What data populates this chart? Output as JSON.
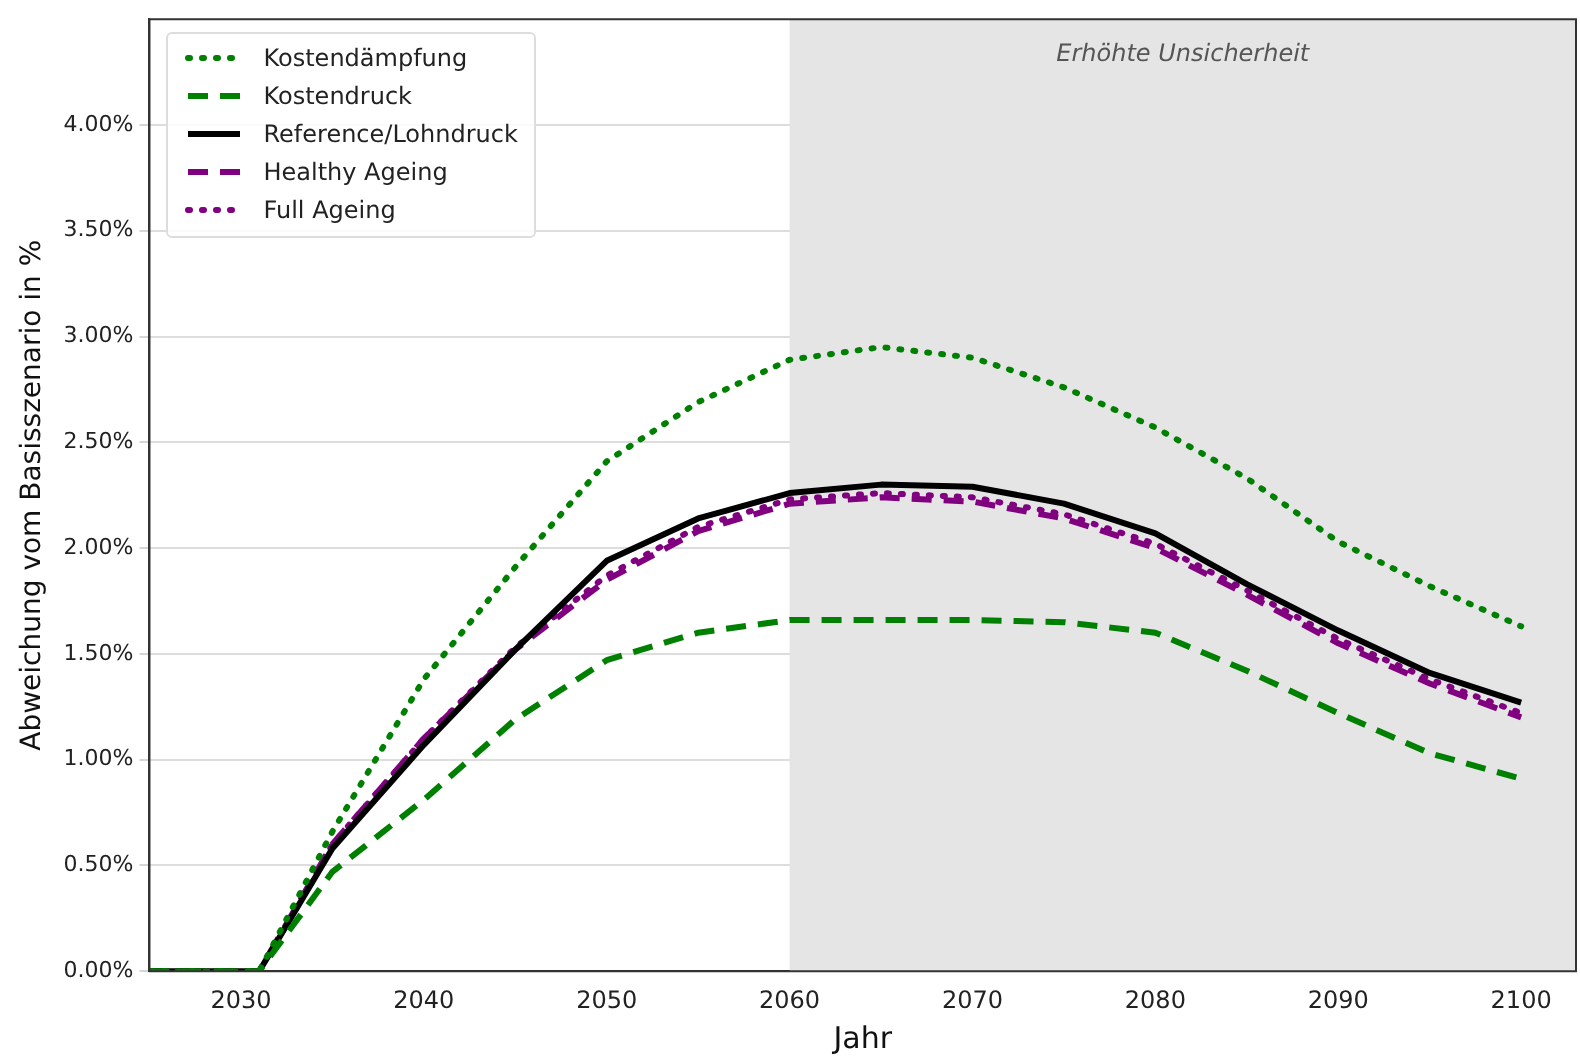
{
  "chart_data": {
    "type": "line",
    "xlabel": "Jahr",
    "ylabel": "Abweichung vom Basisszenario in %",
    "xlim": [
      2025,
      2103
    ],
    "xticks": [
      2030,
      2040,
      2050,
      2060,
      2070,
      2080,
      2090,
      2100
    ],
    "ylim": [
      0,
      4.5
    ],
    "yticks": [
      {
        "value": 0,
        "label": "0.00%"
      },
      {
        "value": 0.5,
        "label": "0.50%"
      },
      {
        "value": 1,
        "label": "1.00%"
      },
      {
        "value": 1.5,
        "label": "1.50%"
      },
      {
        "value": 2,
        "label": "2.00%"
      },
      {
        "value": 2.5,
        "label": "2.50%"
      },
      {
        "value": 3,
        "label": "3.00%"
      },
      {
        "value": 3.5,
        "label": "3.50%"
      },
      {
        "value": 4,
        "label": "4.00%"
      }
    ],
    "x": [
      2025,
      2031,
      2035,
      2040,
      2045,
      2050,
      2055,
      2060,
      2065,
      2070,
      2075,
      2080,
      2085,
      2090,
      2095,
      2100
    ],
    "series": [
      {
        "name": "Kostendämpfung",
        "color": "#008000",
        "line_style": "dotted",
        "values": [
          0,
          0,
          0.66,
          1.38,
          1.91,
          2.41,
          2.69,
          2.89,
          2.95,
          2.9,
          2.76,
          2.57,
          2.33,
          2.03,
          1.82,
          1.63
        ]
      },
      {
        "name": "Kostendruck",
        "color": "#008000",
        "line_style": "dashed",
        "values": [
          0,
          0,
          0.47,
          0.81,
          1.19,
          1.47,
          1.6,
          1.66,
          1.66,
          1.66,
          1.65,
          1.6,
          1.42,
          1.22,
          1.03,
          0.91
        ]
      },
      {
        "name": "Reference/Lohndruck",
        "color": "#000000",
        "line_style": "solid",
        "values": [
          0,
          0,
          0.58,
          1.07,
          1.52,
          1.94,
          2.14,
          2.26,
          2.3,
          2.29,
          2.21,
          2.07,
          1.83,
          1.61,
          1.41,
          1.27
        ]
      },
      {
        "name": "Healthy Ageing",
        "color": "#800080",
        "line_style": "dashed",
        "values": [
          0,
          0,
          0.6,
          1.1,
          1.52,
          1.85,
          2.08,
          2.21,
          2.24,
          2.22,
          2.14,
          2.0,
          1.78,
          1.55,
          1.36,
          1.2
        ]
      },
      {
        "name": "Full Ageing",
        "color": "#800080",
        "line_style": "dotted",
        "values": [
          0,
          0,
          0.6,
          1.1,
          1.53,
          1.87,
          2.1,
          2.23,
          2.26,
          2.24,
          2.16,
          2.02,
          1.8,
          1.57,
          1.38,
          1.22
        ]
      }
    ],
    "bands": [
      {
        "axis": "x",
        "from": 2060,
        "to": 2103,
        "label": "Erhöhte Unsicherheit",
        "color": "#e5e5e5"
      }
    ],
    "grid": "y",
    "legend": "top left",
    "marker": "none"
  }
}
